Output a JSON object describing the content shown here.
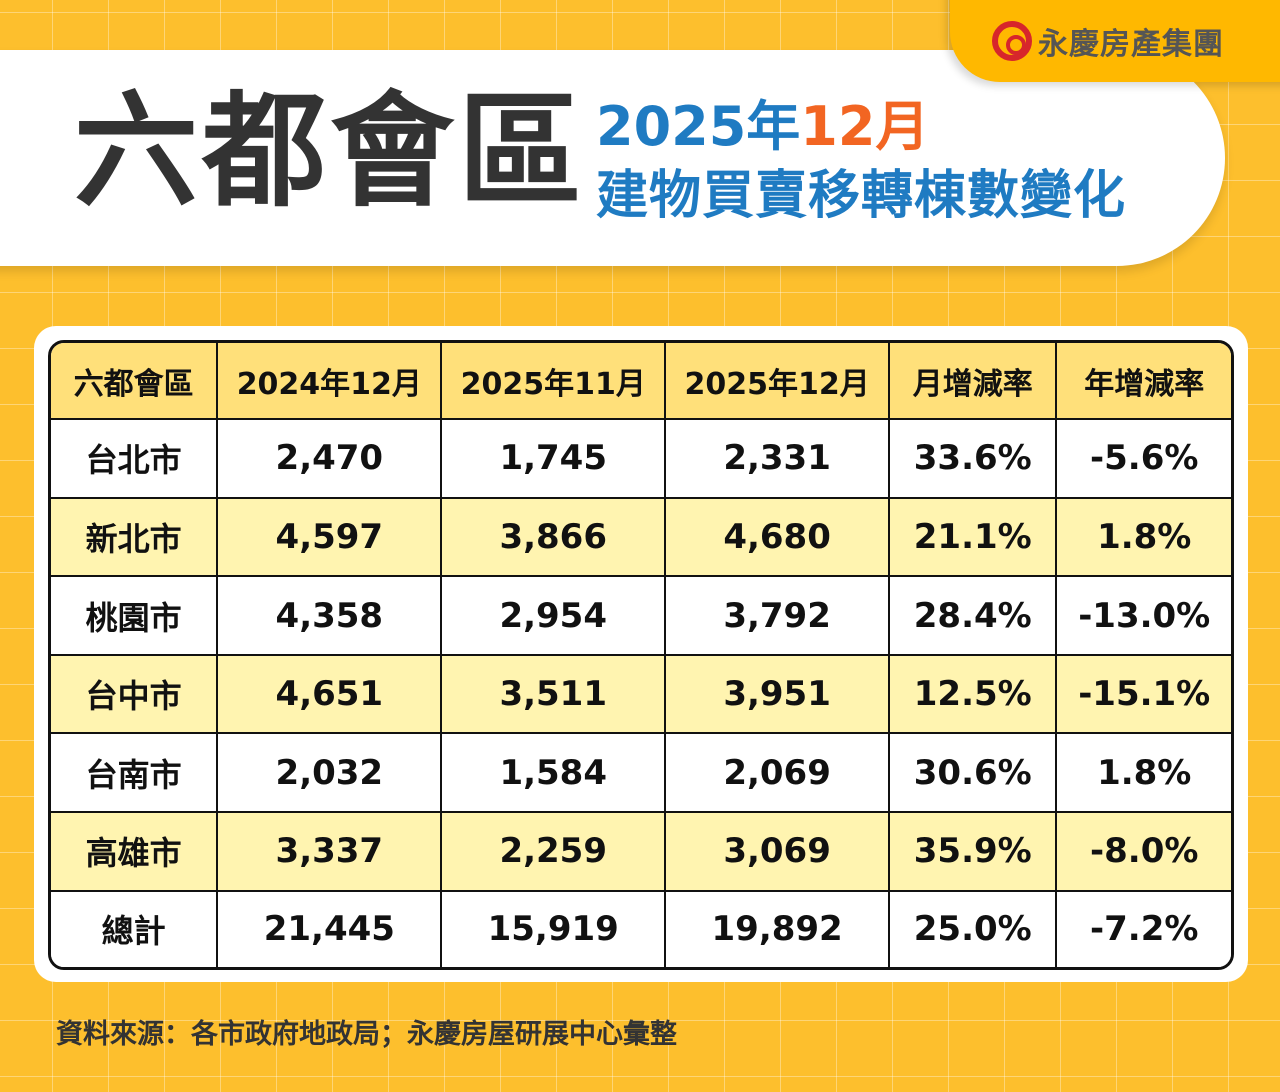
{
  "brand": {
    "logo_text": "永慶房產集團",
    "logo_color": "#D7262B"
  },
  "title": {
    "main": "六都會區",
    "sub_year": "2025年",
    "sub_month": "12月",
    "sub_line2": "建物買賣移轉棟數變化"
  },
  "colors": {
    "background": "#FDBF2D",
    "header_row": "#FFE07A",
    "alt_row": "#FFF4B0",
    "subtitle": "#1F7BC2",
    "highlight": "#F26522"
  },
  "chart_data": {
    "type": "table",
    "columns": [
      "六都會區",
      "2024年12月",
      "2025年11月",
      "2025年12月",
      "月增減率",
      "年增減率"
    ],
    "rows": [
      [
        "台北市",
        "2,470",
        "1,745",
        "2,331",
        "33.6%",
        "-5.6%"
      ],
      [
        "新北市",
        "4,597",
        "3,866",
        "4,680",
        "21.1%",
        "1.8%"
      ],
      [
        "桃園市",
        "4,358",
        "2,954",
        "3,792",
        "28.4%",
        "-13.0%"
      ],
      [
        "台中市",
        "4,651",
        "3,511",
        "3,951",
        "12.5%",
        "-15.1%"
      ],
      [
        "台南市",
        "2,032",
        "1,584",
        "2,069",
        "30.6%",
        "1.8%"
      ],
      [
        "高雄市",
        "3,337",
        "2,259",
        "3,069",
        "35.9%",
        "-8.0%"
      ],
      [
        "總計",
        "21,445",
        "15,919",
        "19,892",
        "25.0%",
        "-7.2%"
      ]
    ]
  },
  "source": "資料來源：各市政府地政局；永慶房屋研展中心彙整"
}
